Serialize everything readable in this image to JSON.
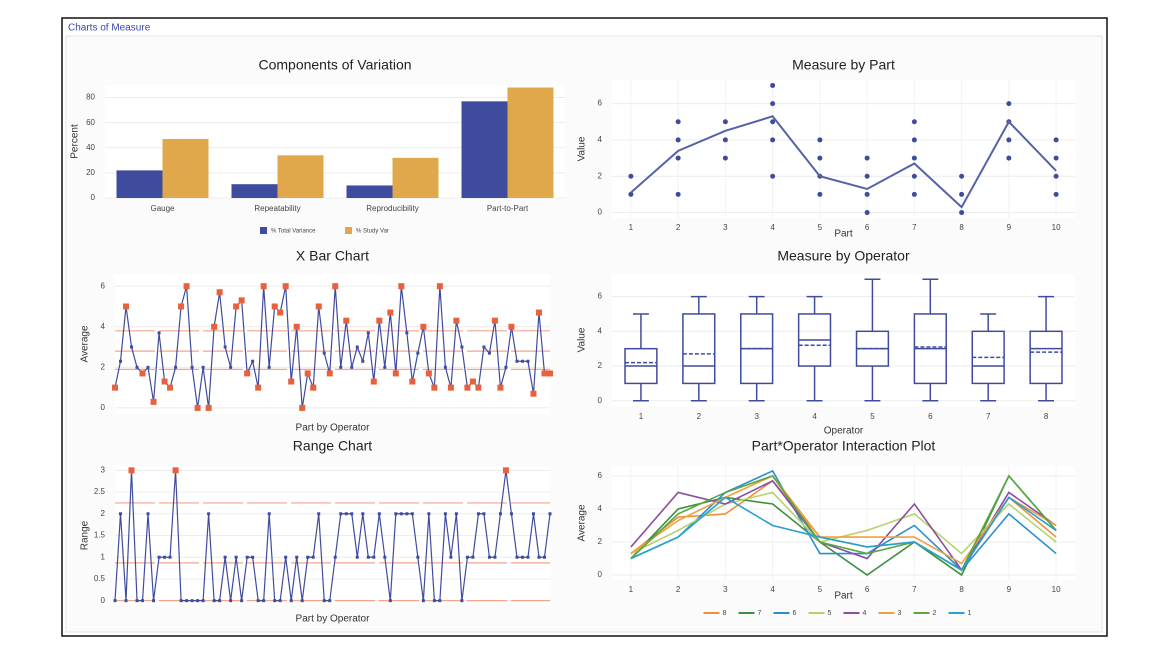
{
  "header": {
    "title": "Charts of Measure"
  },
  "chart_data": [
    {
      "type": "bar",
      "title": "Components of Variation",
      "y_label": "Percent",
      "categories": [
        "Gauge",
        "Repeatability",
        "Reproducibility",
        "Part-to-Part"
      ],
      "series": [
        {
          "name": "% Total Variance",
          "color": "#3f4c9e",
          "values": [
            22,
            11,
            10,
            77
          ]
        },
        {
          "name": "% Study Var",
          "color": "#e0a84a",
          "values": [
            47,
            34,
            32,
            88
          ]
        }
      ],
      "ylim": [
        0,
        90
      ],
      "yticks": [
        0,
        20,
        40,
        60,
        80
      ],
      "grid": true
    },
    {
      "type": "scatter",
      "title": "Measure by Part",
      "x_label": "Part",
      "y_label": "Value",
      "series": [
        {
          "type": "points",
          "color": "#3f4c9e",
          "x": [
            1,
            1,
            2,
            2,
            2,
            2,
            3,
            3,
            3,
            4,
            4,
            4,
            4,
            4,
            5,
            5,
            5,
            5,
            6,
            6,
            6,
            6,
            7,
            7,
            7,
            7,
            7,
            8,
            8,
            8,
            9,
            9,
            9,
            9,
            10,
            10,
            10,
            10
          ],
          "values": [
            1,
            2,
            1,
            3,
            4,
            5,
            3,
            4,
            5,
            2,
            4,
            5,
            6,
            7,
            1,
            2,
            3,
            4,
            0,
            1,
            2,
            3,
            1,
            2,
            3,
            4,
            5,
            0,
            1,
            2,
            3,
            4,
            5,
            6,
            1,
            2,
            3,
            4
          ]
        },
        {
          "type": "line",
          "color": "#5562a8",
          "x": [
            1,
            2,
            3,
            4,
            5,
            6,
            7,
            8,
            9,
            10
          ],
          "values": [
            1.1,
            3.4,
            4.5,
            5.3,
            2,
            1.3,
            2.7,
            0.3,
            5,
            2.3
          ]
        }
      ],
      "xlim": [
        0.6,
        10.4
      ],
      "xticks": [
        1,
        2,
        3,
        4,
        5,
        6,
        7,
        8,
        9,
        10
      ],
      "ylim": [
        -0.3,
        7.3
      ],
      "yticks": [
        0,
        2,
        4,
        6
      ],
      "grid": true
    },
    {
      "type": "line",
      "title": "X Bar Chart",
      "x_label": "Part by Operator",
      "y_label": "Average",
      "color": "#3f4c9e",
      "highlight_color": "#e8603c",
      "limit_color": "#f4a58a",
      "limits": [
        3.8,
        2.8,
        1.9
      ],
      "values": [
        1,
        2.3,
        5,
        3,
        2,
        1.7,
        2,
        0.3,
        3.7,
        1.3,
        1,
        2,
        5,
        6,
        2,
        0,
        2,
        0,
        4,
        5.7,
        3,
        2,
        5,
        5.3,
        1.7,
        2.3,
        1,
        6,
        2,
        5,
        4.7,
        6,
        1.3,
        4,
        0,
        1.7,
        1,
        5,
        2.7,
        1.7,
        6,
        2,
        4.3,
        2,
        3,
        2.3,
        3.7,
        1.3,
        4.3,
        2,
        4.7,
        1.7,
        6,
        3.7,
        1.3,
        2.7,
        4,
        1.7,
        1,
        6,
        2,
        1,
        4.3,
        3,
        1,
        1.3,
        1,
        3,
        2.7,
        4.3,
        1,
        2,
        4,
        2.3,
        2.3,
        2.3,
        0.7,
        4.7,
        1.7,
        1.7
      ],
      "ylim": [
        -0.3,
        6.6
      ],
      "yticks": [
        0,
        2,
        4,
        6
      ],
      "grid": true
    },
    {
      "type": "box",
      "title": "Measure by Operator",
      "x_label": "Operator",
      "y_label": "Value",
      "color": "#3f4c9e",
      "categories": [
        "1",
        "2",
        "3",
        "4",
        "5",
        "6",
        "7",
        "8"
      ],
      "min": [
        0,
        0,
        0,
        0,
        0,
        0,
        0,
        0
      ],
      "q1": [
        1,
        1,
        1,
        2,
        2,
        1,
        1,
        1
      ],
      "median": [
        2,
        2,
        3,
        3.5,
        3,
        3,
        2,
        3
      ],
      "q3": [
        3,
        5,
        5,
        5,
        4,
        5,
        4,
        4
      ],
      "max": [
        5,
        6,
        6,
        6,
        7,
        7,
        5,
        6
      ],
      "mean": [
        2.2,
        2.7,
        3,
        3.2,
        3,
        3.1,
        2.5,
        2.8
      ],
      "ylim": [
        -0.3,
        7.3
      ],
      "yticks": [
        0,
        2,
        4,
        6
      ],
      "grid": true
    },
    {
      "type": "line",
      "title": "Range Chart",
      "x_label": "Part by Operator",
      "y_label": "Range",
      "color": "#3f4c9e",
      "highlight_color": "#e8603c",
      "limit_color": "#f4a58a",
      "limits": [
        2.25,
        0.87,
        0
      ],
      "values": [
        0,
        2,
        0,
        3,
        0,
        0,
        2,
        0,
        1,
        1,
        1,
        3,
        0,
        0,
        0,
        0,
        0,
        2,
        0,
        0,
        1,
        0,
        1,
        0,
        1,
        1,
        0,
        0,
        2,
        0,
        0,
        1,
        0,
        1,
        0,
        1,
        1,
        2,
        0,
        0,
        1,
        2,
        2,
        2,
        1,
        2,
        1,
        1,
        2,
        1,
        0,
        2,
        2,
        2,
        2,
        1,
        0,
        2,
        0,
        0,
        2,
        1,
        2,
        0,
        1,
        1,
        2,
        2,
        1,
        1,
        2,
        3,
        2,
        1,
        1,
        1,
        2,
        1,
        1,
        2
      ],
      "ylim": [
        -0.1,
        3.1
      ],
      "yticks": [
        0,
        0.5,
        1,
        1.5,
        2,
        2.5,
        3
      ],
      "grid": true
    },
    {
      "type": "line",
      "title": "Part*Operator Interaction Plot",
      "x_label": "Part",
      "y_label": "Average",
      "x": [
        1,
        2,
        3,
        4,
        5,
        6,
        7,
        8,
        9,
        10
      ],
      "series": [
        {
          "name": "8",
          "color": "#f0913a",
          "values": [
            1.3,
            3.5,
            3.7,
            5.7,
            2.3,
            1.7,
            2,
            0.3,
            4.7,
            2.3
          ]
        },
        {
          "name": "7",
          "color": "#3d8f3d",
          "values": [
            1,
            4,
            4.7,
            4.3,
            2,
            0,
            2,
            0,
            6,
            2.7
          ]
        },
        {
          "name": "6",
          "color": "#2a8fd0",
          "values": [
            1,
            2.3,
            5,
            6.3,
            1.3,
            1.3,
            3,
            0.3,
            3.7,
            1.3
          ]
        },
        {
          "name": "5",
          "color": "#b5d36b",
          "values": [
            1.3,
            2.7,
            4.3,
            5,
            2,
            2.7,
            3.7,
            1.3,
            4.3,
            2
          ]
        },
        {
          "name": "4",
          "color": "#8a4fa0",
          "values": [
            1.7,
            5,
            4.3,
            5.7,
            2,
            1,
            4.3,
            0.3,
            5,
            3
          ]
        },
        {
          "name": "3",
          "color": "#f0a040",
          "values": [
            1.3,
            3.3,
            4.7,
            6,
            2.3,
            2.3,
            2.3,
            0.7,
            4.7,
            3
          ]
        },
        {
          "name": "2",
          "color": "#5aa640",
          "values": [
            1,
            3.7,
            5,
            6,
            2,
            1.3,
            2,
            0.3,
            6,
            2.7
          ]
        },
        {
          "name": "1",
          "color": "#2aa0d0",
          "values": [
            1,
            2.3,
            4.7,
            3,
            2.3,
            1.7,
            2,
            0.3,
            4.7,
            2.7
          ]
        }
      ],
      "xlim": [
        0.6,
        10.4
      ],
      "xticks": [
        1,
        2,
        3,
        4,
        5,
        6,
        7,
        8,
        9,
        10
      ],
      "ylim": [
        -0.3,
        6.6
      ],
      "yticks": [
        0,
        2,
        4,
        6
      ],
      "grid": true
    }
  ]
}
